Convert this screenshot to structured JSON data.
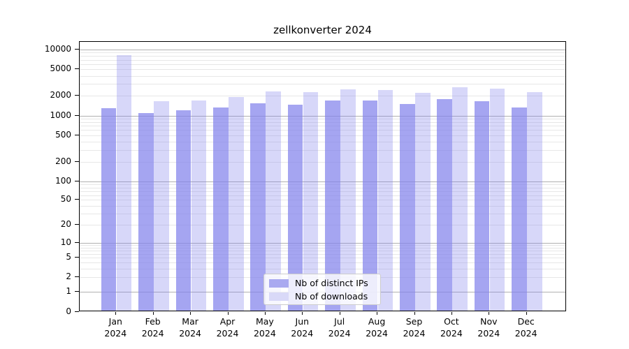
{
  "title": "zellkonverter 2024",
  "chart_data": {
    "type": "bar",
    "title": "zellkonverter 2024",
    "categories": [
      "Jan 2024",
      "Feb 2024",
      "Mar 2024",
      "Apr 2024",
      "May 2024",
      "Jun 2024",
      "Jul 2024",
      "Aug 2024",
      "Sep 2024",
      "Oct 2024",
      "Nov 2024",
      "Dec 2024"
    ],
    "series": [
      {
        "name": "Nb of distinct IPs",
        "color": "#a9a9f0",
        "fill": "rgba(130,130,235,0.72)",
        "values": [
          1280,
          1100,
          1190,
          1310,
          1530,
          1450,
          1700,
          1680,
          1500,
          1770,
          1660,
          1330
        ]
      },
      {
        "name": "Nb of downloads",
        "color": "#d9d9f8",
        "fill": "rgba(130,130,235,0.32)",
        "values": [
          8300,
          1650,
          1690,
          1900,
          2320,
          2260,
          2500,
          2430,
          2190,
          2660,
          2570,
          2280
        ]
      }
    ],
    "yticks": [
      10000,
      5000,
      2000,
      1000,
      500,
      200,
      100,
      50,
      20,
      10,
      5,
      2,
      1,
      0
    ],
    "ylim": [
      0,
      10000
    ],
    "yscale": "log-like with linear 0-1 segment",
    "grid": true,
    "legend_position": "lower center"
  },
  "colors": {
    "major_grid": "#b0b0b0",
    "minor_grid": "#e7e7e7",
    "spine": "#000000",
    "background": "#ffffff"
  }
}
